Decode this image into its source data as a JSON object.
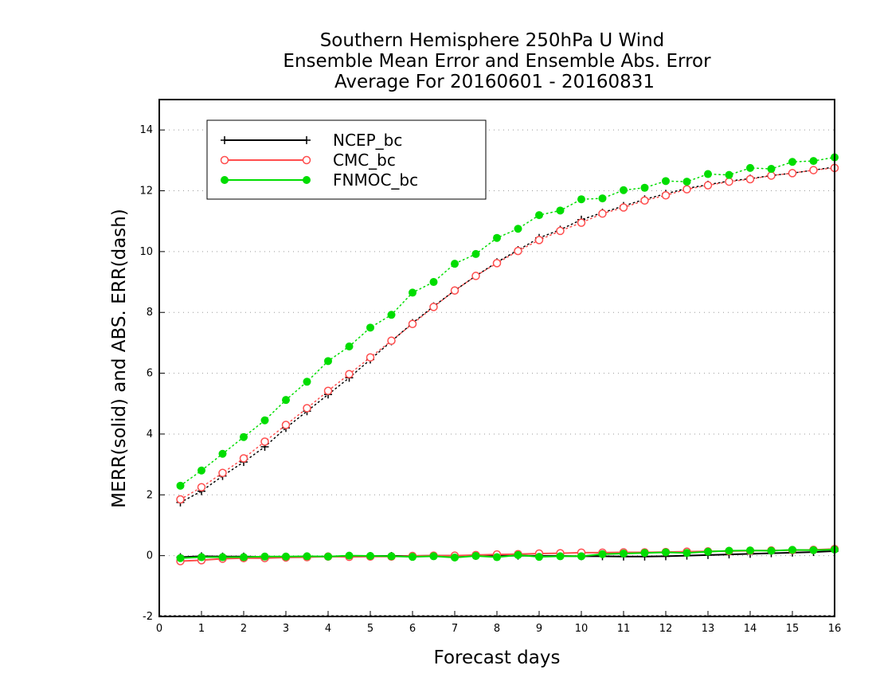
{
  "chart_data": {
    "type": "line",
    "title": [
      "Southern Hemisphere 250hPa U Wind",
      "Ensemble Mean Error and Ensemble Abs. Error",
      "Average For 20160601 - 20160831"
    ],
    "xlabel": "Forecast days",
    "ylabel": "MERR(solid) and ABS. ERR(dash)",
    "xlim": [
      0,
      16
    ],
    "ylim": [
      -2,
      15
    ],
    "xticks": [
      "0",
      "1",
      "2",
      "3",
      "4",
      "5",
      "6",
      "7",
      "8",
      "9",
      "10",
      "11",
      "12",
      "13",
      "14",
      "15",
      "16"
    ],
    "yticks": [
      "-2",
      "0",
      "2",
      "4",
      "6",
      "8",
      "10",
      "12",
      "14"
    ],
    "grid": "horizontal dotted",
    "legend_position": "top-left",
    "x": [
      0.5,
      1,
      1.5,
      2,
      2.5,
      3,
      3.5,
      4,
      4.5,
      5,
      5.5,
      6,
      6.5,
      7,
      7.5,
      8,
      8.5,
      9,
      9.5,
      10,
      10.5,
      11,
      11.5,
      12,
      12.5,
      13,
      13.5,
      14,
      14.5,
      15,
      15.5,
      16
    ],
    "series": [
      {
        "name": "NCEP_bc",
        "color": "#000000",
        "marker": "plus",
        "merr": [
          -0.05,
          -0.02,
          -0.03,
          -0.03,
          -0.04,
          -0.04,
          -0.04,
          -0.03,
          -0.02,
          -0.01,
          -0.01,
          -0.01,
          0.0,
          0.0,
          -0.01,
          -0.01,
          0.0,
          -0.01,
          -0.01,
          -0.02,
          -0.02,
          -0.03,
          -0.03,
          -0.02,
          0.0,
          0.02,
          0.04,
          0.06,
          0.08,
          0.1,
          0.12,
          0.15
        ],
        "abs_err": [
          1.75,
          2.12,
          2.62,
          3.08,
          3.58,
          4.2,
          4.75,
          5.3,
          5.85,
          6.45,
          7.05,
          7.65,
          8.2,
          8.72,
          9.2,
          9.65,
          10.05,
          10.45,
          10.72,
          11.05,
          11.28,
          11.5,
          11.72,
          11.9,
          12.08,
          12.2,
          12.32,
          12.4,
          12.5,
          12.58,
          12.68,
          12.78
        ]
      },
      {
        "name": "CMC_bc",
        "color": "#ff4d4d",
        "marker": "open-circle",
        "merr": [
          -0.18,
          -0.15,
          -0.1,
          -0.08,
          -0.08,
          -0.06,
          -0.05,
          -0.03,
          -0.04,
          -0.03,
          -0.03,
          -0.01,
          0.0,
          0.0,
          0.02,
          0.04,
          0.05,
          0.07,
          0.08,
          0.1,
          0.1,
          0.11,
          0.11,
          0.12,
          0.13,
          0.14,
          0.15,
          0.16,
          0.17,
          0.18,
          0.19,
          0.22
        ],
        "abs_err": [
          1.85,
          2.25,
          2.72,
          3.2,
          3.75,
          4.3,
          4.85,
          5.42,
          5.97,
          6.52,
          7.07,
          7.62,
          8.18,
          8.72,
          9.2,
          9.62,
          10.02,
          10.38,
          10.68,
          10.95,
          11.25,
          11.45,
          11.68,
          11.85,
          12.05,
          12.18,
          12.3,
          12.38,
          12.5,
          12.58,
          12.68,
          12.75
        ]
      },
      {
        "name": "FNMOC_bc",
        "color": "#00dd00",
        "marker": "filled-circle",
        "merr": [
          -0.08,
          -0.05,
          -0.05,
          -0.05,
          -0.03,
          -0.03,
          -0.02,
          -0.03,
          0.0,
          -0.01,
          -0.02,
          -0.04,
          -0.02,
          -0.06,
          -0.01,
          -0.05,
          0.02,
          -0.04,
          -0.02,
          -0.02,
          0.05,
          0.07,
          0.09,
          0.11,
          0.09,
          0.13,
          0.16,
          0.17,
          0.16,
          0.19,
          0.18,
          0.2
        ],
        "abs_err": [
          2.3,
          2.8,
          3.35,
          3.9,
          4.45,
          5.12,
          5.72,
          6.4,
          6.88,
          7.5,
          7.92,
          8.65,
          9.0,
          9.6,
          9.92,
          10.45,
          10.75,
          11.2,
          11.35,
          11.72,
          11.75,
          12.02,
          12.1,
          12.32,
          12.3,
          12.55,
          12.52,
          12.75,
          12.72,
          12.95,
          12.98,
          13.1
        ]
      }
    ]
  }
}
